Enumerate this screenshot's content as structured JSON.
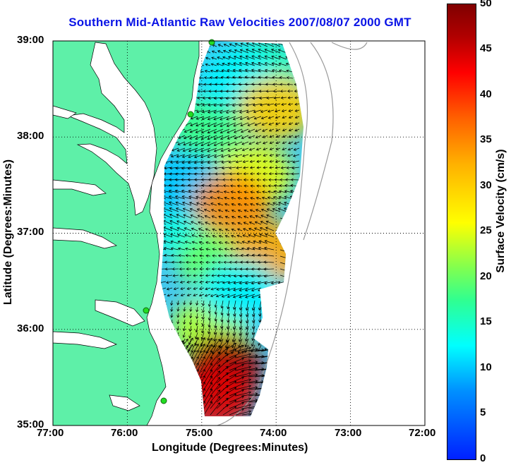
{
  "title": "Southern Mid-Atlantic Raw Velocities 2007/08/07 2000 GMT",
  "x_axis": {
    "label": "Longitude (Degrees:Minutes)",
    "ticks": [
      "77:00",
      "76:00",
      "75:00",
      "74:00",
      "73:00",
      "72:00"
    ]
  },
  "y_axis": {
    "label": "Latitude (Degrees:Minutes)",
    "ticks": [
      "39:00",
      "38:00",
      "37:00",
      "36:00",
      "35:00"
    ]
  },
  "colorbar": {
    "label": "Surface Velocity (cm/s)",
    "ticks": [
      "50",
      "45",
      "40",
      "35",
      "30",
      "25",
      "20",
      "15",
      "10",
      "5",
      "0"
    ],
    "colormap": "jet",
    "range": [
      0,
      50
    ]
  },
  "colors": {
    "land": "#5ef0a8",
    "title": "#0a14e6",
    "station_marker": "#22dd22",
    "grid": "dotted-black"
  },
  "grid": true,
  "chart_data": {
    "type": "heatmap",
    "title": "Southern Mid-Atlantic Raw Velocities 2007/08/07 2000 GMT",
    "xlabel": "Longitude (Degrees:Minutes)",
    "ylabel": "Latitude (Degrees:Minutes)",
    "xlim": [
      -77,
      -72
    ],
    "ylim": [
      35,
      39
    ],
    "color_label": "Surface Velocity (cm/s)",
    "color_range": [
      0,
      50
    ],
    "overlay": "velocity vectors (arrows)",
    "regions": [
      {
        "lon": -74.5,
        "lat": 38.6,
        "speed": 12
      },
      {
        "lon": -74.0,
        "lat": 38.3,
        "speed": 30
      },
      {
        "lon": -74.6,
        "lat": 37.3,
        "speed": 35
      },
      {
        "lon": -74.1,
        "lat": 36.8,
        "speed": 33
      },
      {
        "lon": -74.5,
        "lat": 36.4,
        "speed": 12
      },
      {
        "lon": -74.7,
        "lat": 35.6,
        "speed": 47
      },
      {
        "lon": -74.8,
        "lat": 35.3,
        "speed": 44
      }
    ]
  }
}
